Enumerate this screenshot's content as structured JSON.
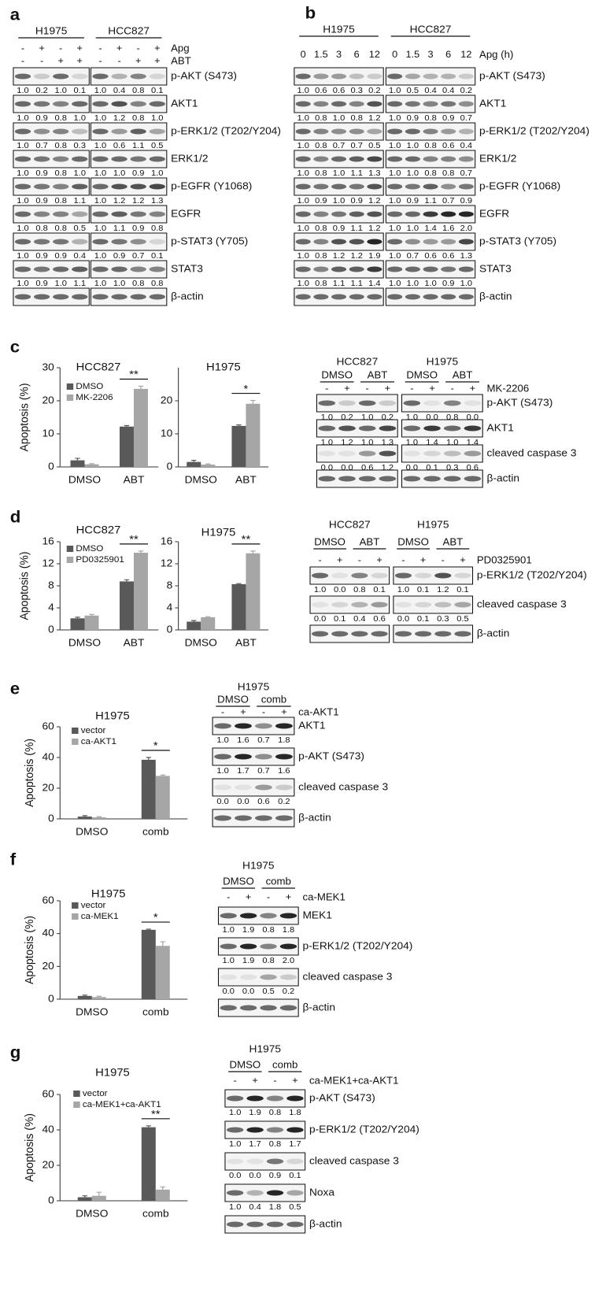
{
  "letters": [
    "a",
    "b",
    "c",
    "d",
    "e",
    "f",
    "g"
  ],
  "blots": [
    {
      "groups": [
        {
          "name": "H1975"
        },
        {
          "name": "HCC827"
        }
      ],
      "conditions": [
        {
          "label": "Apg",
          "lanes": [
            "-",
            "+",
            "-",
            "+",
            "-",
            "+",
            "-",
            "+"
          ]
        },
        {
          "label": "ABT",
          "lanes": [
            "-",
            "-",
            "+",
            "+",
            "-",
            "-",
            "+",
            "+"
          ]
        }
      ],
      "rows": [
        {
          "label": "p-AKT (S473)",
          "quant": [
            "1.0",
            "0.2",
            "1.0",
            "0.1",
            "1.0",
            "0.4",
            "0.8",
            "0.1"
          ]
        },
        {
          "label": "AKT1",
          "quant": [
            "1.0",
            "0.9",
            "0.8",
            "1.0",
            "1.0",
            "1.2",
            "0.8",
            "1.0"
          ]
        },
        {
          "label": "p-ERK1/2 (T202/Y204)",
          "quant": [
            "1.0",
            "0.7",
            "0.8",
            "0.3",
            "1.0",
            "0.6",
            "1.1",
            "0.5"
          ]
        },
        {
          "label": "ERK1/2",
          "quant": [
            "1.0",
            "0.9",
            "0.8",
            "1.0",
            "1.0",
            "1.0",
            "0.9",
            "1.0"
          ]
        },
        {
          "label": "p-EGFR (Y1068)",
          "quant": [
            "1.0",
            "0.9",
            "0.8",
            "1.1",
            "1.0",
            "1.2",
            "1.2",
            "1.3"
          ]
        },
        {
          "label": "EGFR",
          "quant": [
            "1.0",
            "0.8",
            "0.8",
            "0.5",
            "1.0",
            "1.1",
            "0.9",
            "0.8"
          ]
        },
        {
          "label": "p-STAT3 (Y705)",
          "quant": [
            "1.0",
            "0.9",
            "0.9",
            "0.4",
            "1.0",
            "0.9",
            "0.7",
            "0.1"
          ]
        },
        {
          "label": "STAT3",
          "quant": [
            "1.0",
            "0.9",
            "1.0",
            "1.1",
            "1.0",
            "1.0",
            "0.8",
            "0.8"
          ]
        },
        {
          "label": "β-actin"
        }
      ]
    },
    {
      "groups": [
        {
          "name": "H1975"
        },
        {
          "name": "HCC827"
        }
      ],
      "conditions": [
        {
          "label": "Apg (h)",
          "lanes": [
            "0",
            "1.5",
            "3",
            "6",
            "12",
            "0",
            "1.5",
            "3",
            "6",
            "12"
          ]
        }
      ],
      "rows": [
        {
          "label": "p-AKT (S473)",
          "quant": [
            "1.0",
            "0.6",
            "0.6",
            "0.3",
            "0.2",
            "1.0",
            "0.5",
            "0.4",
            "0.4",
            "0.2"
          ]
        },
        {
          "label": "AKT1",
          "quant": [
            "1.0",
            "0.8",
            "1.0",
            "0.8",
            "1.2",
            "1.0",
            "0.9",
            "0.8",
            "0.9",
            "0.7"
          ]
        },
        {
          "label": "p-ERK1/2 (T202/Y204)",
          "quant": [
            "1.0",
            "0.8",
            "0.7",
            "0.7",
            "0.5",
            "1.0",
            "1.0",
            "0.8",
            "0.6",
            "0.4"
          ]
        },
        {
          "label": "ERK1/2",
          "quant": [
            "1.0",
            "0.8",
            "1.0",
            "1.1",
            "1.3",
            "1.0",
            "1.0",
            "0.8",
            "0.8",
            "0.7"
          ]
        },
        {
          "label": "p-EGFR (Y1068)",
          "quant": [
            "1.0",
            "0.9",
            "1.0",
            "0.9",
            "1.2",
            "1.0",
            "0.9",
            "1.1",
            "0.7",
            "0.9"
          ]
        },
        {
          "label": "EGFR",
          "quant": [
            "1.0",
            "0.8",
            "0.9",
            "1.1",
            "1.2",
            "1.0",
            "1.0",
            "1.4",
            "1.6",
            "2.0"
          ]
        },
        {
          "label": "p-STAT3 (Y705)",
          "quant": [
            "1.0",
            "0.8",
            "1.2",
            "1.2",
            "1.9",
            "1.0",
            "0.7",
            "0.6",
            "0.6",
            "1.3"
          ]
        },
        {
          "label": "STAT3",
          "quant": [
            "1.0",
            "0.8",
            "1.1",
            "1.1",
            "1.4",
            "1.0",
            "1.0",
            "1.0",
            "0.9",
            "1.0"
          ]
        },
        {
          "label": "β-actin"
        }
      ]
    },
    {
      "groups": [
        {
          "name": "HCC827",
          "subgroups": [
            "DMSO",
            "ABT"
          ]
        },
        {
          "name": "H1975",
          "subgroups": [
            "DMSO",
            "ABT"
          ]
        }
      ],
      "conditions": [
        {
          "label": "MK-2206",
          "lanes": [
            "-",
            "+",
            "-",
            "+",
            "-",
            "+",
            "-",
            "+"
          ]
        }
      ],
      "rows": [
        {
          "label": "p-AKT (S473)",
          "quant": [
            "1.0",
            "0.2",
            "1.0",
            "0.2",
            "1.0",
            "0.0",
            "0.8",
            "0.0"
          ]
        },
        {
          "label": "AKT1",
          "quant": [
            "1.0",
            "1.2",
            "1.0",
            "1.3",
            "1.0",
            "1.4",
            "1.0",
            "1.4"
          ]
        },
        {
          "label": "cleaved caspase 3",
          "quant": [
            "0.0",
            "0.0",
            "0.6",
            "1.2",
            "0.0",
            "0.1",
            "0.3",
            "0.6"
          ]
        },
        {
          "label": "β-actin"
        }
      ]
    },
    {
      "groups": [
        {
          "name": "HCC827",
          "subgroups": [
            "DMSO",
            "ABT"
          ]
        },
        {
          "name": "H1975",
          "subgroups": [
            "DMSO",
            "ABT"
          ]
        }
      ],
      "conditions": [
        {
          "label": "PD0325901",
          "lanes": [
            "-",
            "+",
            "-",
            "+",
            "-",
            "+",
            "-",
            "+"
          ]
        }
      ],
      "rows": [
        {
          "label": "p-ERK1/2 (T202/Y204)",
          "quant": [
            "1.0",
            "0.0",
            "0.8",
            "0.1",
            "1.0",
            "0.1",
            "1.2",
            "0.1"
          ]
        },
        {
          "label": "cleaved caspase 3",
          "quant": [
            "0.0",
            "0.1",
            "0.4",
            "0.6",
            "0.0",
            "0.1",
            "0.3",
            "0.5"
          ]
        },
        {
          "label": "β-actin"
        }
      ]
    },
    {
      "groups": [
        {
          "name": "H1975",
          "subgroups": [
            "DMSO",
            "comb"
          ]
        }
      ],
      "conditions": [
        {
          "label": "ca-AKT1",
          "lanes": [
            "-",
            "+",
            "-",
            "+"
          ]
        }
      ],
      "rows": [
        {
          "label": "AKT1",
          "quant": [
            "1.0",
            "1.6",
            "0.7",
            "1.8"
          ]
        },
        {
          "label": "p-AKT (S473)",
          "quant": [
            "1.0",
            "1.7",
            "0.7",
            "1.6"
          ]
        },
        {
          "label": "cleaved caspase 3",
          "quant": [
            "0.0",
            "0.0",
            "0.6",
            "0.2"
          ]
        },
        {
          "label": "β-actin"
        }
      ]
    },
    {
      "groups": [
        {
          "name": "H1975",
          "subgroups": [
            "DMSO",
            "comb"
          ]
        }
      ],
      "conditions": [
        {
          "label": "ca-MEK1",
          "lanes": [
            "-",
            "+",
            "-",
            "+"
          ]
        }
      ],
      "rows": [
        {
          "label": "MEK1",
          "quant": [
            "1.0",
            "1.9",
            "0.8",
            "1.8"
          ]
        },
        {
          "label": "p-ERK1/2 (T202/Y204)",
          "quant": [
            "1.0",
            "1.9",
            "0.8",
            "2.0"
          ]
        },
        {
          "label": "cleaved caspase 3",
          "quant": [
            "0.0",
            "0.0",
            "0.5",
            "0.2"
          ]
        },
        {
          "label": "β-actin"
        }
      ]
    },
    {
      "groups": [
        {
          "name": "H1975",
          "subgroups": [
            "DMSO",
            "comb"
          ]
        }
      ],
      "conditions": [
        {
          "label": "ca-MEK1+ca-AKT1",
          "lanes": [
            "-",
            "+",
            "-",
            "+"
          ]
        }
      ],
      "rows": [
        {
          "label": "p-AKT (S473)",
          "quant": [
            "1.0",
            "1.9",
            "0.8",
            "1.8"
          ]
        },
        {
          "label": "p-ERK1/2 (T202/Y204)",
          "quant": [
            "1.0",
            "1.7",
            "0.8",
            "1.7"
          ]
        },
        {
          "label": "cleaved caspase 3",
          "quant": [
            "0.0",
            "0.0",
            "0.9",
            "0.1"
          ]
        },
        {
          "label": "Noxa",
          "quant": [
            "1.0",
            "0.4",
            "1.8",
            "0.5"
          ]
        },
        {
          "label": "β-actin"
        }
      ]
    }
  ],
  "chart_data": [
    {
      "type": "bar",
      "title": "HCC827",
      "ylabel": "Apoptosis (%)",
      "categories": [
        "DMSO",
        "ABT"
      ],
      "ylim": [
        0,
        30
      ],
      "yticks": [
        0,
        10,
        20,
        30
      ],
      "legend": true,
      "series": [
        {
          "name": "DMSO",
          "color": "#595959",
          "values": [
            2.0,
            12.2
          ],
          "errors": [
            0.6,
            0.3
          ]
        },
        {
          "name": "MK-2206",
          "color": "#a6a6a6",
          "values": [
            0.8,
            23.6
          ],
          "errors": [
            0.2,
            0.8
          ]
        }
      ],
      "annotations": [
        {
          "text": "**",
          "category": "ABT"
        }
      ]
    },
    {
      "type": "bar",
      "title": "H1975",
      "categories": [
        "DMSO",
        "ABT"
      ],
      "ylim": [
        0,
        30
      ],
      "yticks": [
        0,
        10,
        20
      ],
      "legend": false,
      "series": [
        {
          "color": "#595959",
          "values": [
            1.5,
            12.4
          ],
          "errors": [
            0.5,
            0.3
          ]
        },
        {
          "color": "#a6a6a6",
          "values": [
            0.7,
            19.1
          ],
          "errors": [
            0.2,
            1.0
          ]
        }
      ],
      "annotations": [
        {
          "text": "*",
          "category": "ABT"
        }
      ]
    },
    {
      "type": "bar",
      "title": "HCC827",
      "ylabel": "Apoptosis (%)",
      "categories": [
        "DMSO",
        "ABT"
      ],
      "ylim": [
        0,
        16
      ],
      "yticks": [
        0,
        4,
        8,
        12,
        16
      ],
      "legend": true,
      "series": [
        {
          "name": "DMSO",
          "color": "#595959",
          "values": [
            2.1,
            8.8
          ],
          "errors": [
            0.2,
            0.3
          ]
        },
        {
          "name": "PD0325901",
          "color": "#a6a6a6",
          "values": [
            2.6,
            14.0
          ],
          "errors": [
            0.2,
            0.3
          ]
        }
      ],
      "annotations": [
        {
          "text": "**",
          "category": "ABT"
        }
      ]
    },
    {
      "type": "bar",
      "title": "H1975",
      "categories": [
        "DMSO",
        "ABT"
      ],
      "ylim": [
        0,
        16
      ],
      "yticks": [
        0,
        4,
        8,
        12,
        16
      ],
      "legend": false,
      "series": [
        {
          "color": "#595959",
          "values": [
            1.5,
            8.3
          ],
          "errors": [
            0.2,
            0.1
          ]
        },
        {
          "color": "#a6a6a6",
          "values": [
            2.3,
            13.9
          ],
          "errors": [
            0.1,
            0.4
          ]
        }
      ],
      "annotations": [
        {
          "text": "**",
          "category": "ABT"
        }
      ]
    },
    {
      "type": "bar",
      "title": "H1975",
      "ylabel": "Apoptosis (%)",
      "categories": [
        "DMSO",
        "comb"
      ],
      "ylim": [
        0,
        60
      ],
      "yticks": [
        0,
        20,
        40,
        60
      ],
      "legend": true,
      "series": [
        {
          "name": "vector",
          "color": "#595959",
          "values": [
            1.5,
            38.5
          ],
          "errors": [
            0.6,
            1.5
          ]
        },
        {
          "name": "ca-AKT1",
          "color": "#a6a6a6",
          "values": [
            1.0,
            28.0
          ],
          "errors": [
            0.4,
            0.6
          ]
        }
      ],
      "annotations": [
        {
          "text": "*",
          "category": "comb"
        }
      ]
    },
    {
      "type": "bar",
      "title": "H1975",
      "ylabel": "Apoptosis (%)",
      "categories": [
        "DMSO",
        "comb"
      ],
      "ylim": [
        0,
        60
      ],
      "yticks": [
        0,
        20,
        40,
        60
      ],
      "legend": true,
      "series": [
        {
          "name": "vector",
          "color": "#595959",
          "values": [
            2.0,
            42.3
          ],
          "errors": [
            0.5,
            0.4
          ]
        },
        {
          "name": "ca-MEK1",
          "color": "#a6a6a6",
          "values": [
            1.3,
            32.5
          ],
          "errors": [
            0.5,
            2.5
          ]
        }
      ],
      "annotations": [
        {
          "text": "*",
          "category": "comb"
        }
      ]
    },
    {
      "type": "bar",
      "title": "H1975",
      "ylabel": "Apoptosis (%)",
      "categories": [
        "DMSO",
        "comb"
      ],
      "ylim": [
        0,
        60
      ],
      "yticks": [
        0,
        20,
        40,
        60
      ],
      "legend": true,
      "series": [
        {
          "name": "vector",
          "color": "#595959",
          "values": [
            2.0,
            41.5
          ],
          "errors": [
            0.8,
            0.8
          ]
        },
        {
          "name": "ca-MEK1+ca-AKT1",
          "color": "#a6a6a6",
          "values": [
            2.8,
            6.3
          ],
          "errors": [
            2.0,
            1.5
          ]
        }
      ],
      "annotations": [
        {
          "text": "**",
          "category": "comb"
        }
      ]
    }
  ]
}
